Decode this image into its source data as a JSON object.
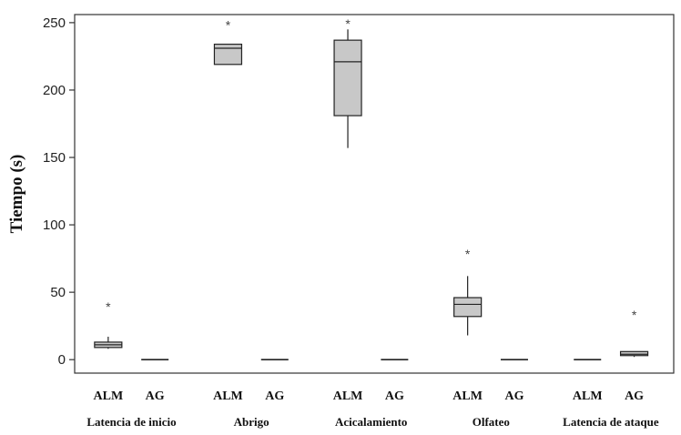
{
  "chart_data": {
    "type": "boxplot",
    "ylabel": "Tiempo (s)",
    "ylim": [
      -10,
      256
    ],
    "yticks": [
      0,
      50,
      100,
      150,
      200,
      250
    ],
    "grid": false,
    "groups": [
      {
        "label": "Latencia de inicio",
        "boxes": [
          {
            "label": "ALM",
            "min": 8,
            "q1": 9,
            "median": 11,
            "q3": 13,
            "max": 17,
            "outliers": [
              42
            ]
          },
          {
            "label": "AG",
            "min": 0,
            "q1": 0,
            "median": 0,
            "q3": 0,
            "max": 0,
            "outliers": []
          }
        ]
      },
      {
        "label": "Abrigo",
        "boxes": [
          {
            "label": "ALM",
            "min": 219,
            "q1": 219,
            "median": 231,
            "q3": 234,
            "max": 234,
            "outliers": [
              251
            ]
          },
          {
            "label": "AG",
            "min": 0,
            "q1": 0,
            "median": 0,
            "q3": 0,
            "max": 0,
            "outliers": []
          }
        ]
      },
      {
        "label": "Acicalamiento",
        "boxes": [
          {
            "label": "ALM",
            "min": 157,
            "q1": 181,
            "median": 221,
            "q3": 237,
            "max": 245,
            "outliers": [
              252
            ]
          },
          {
            "label": "AG",
            "min": 0,
            "q1": 0,
            "median": 0,
            "q3": 0,
            "max": 0,
            "outliers": []
          }
        ]
      },
      {
        "label": "Olfateo",
        "boxes": [
          {
            "label": "ALM",
            "min": 18,
            "q1": 32,
            "median": 41,
            "q3": 46,
            "max": 62,
            "outliers": [
              81
            ]
          },
          {
            "label": "AG",
            "min": 0,
            "q1": 0,
            "median": 0,
            "q3": 0,
            "max": 0,
            "outliers": []
          }
        ]
      },
      {
        "label": "Latencia de ataque",
        "boxes": [
          {
            "label": "ALM",
            "min": 0,
            "q1": 0,
            "median": 0,
            "q3": 0,
            "max": 0,
            "outliers": []
          },
          {
            "label": "AG",
            "min": 2,
            "q1": 3,
            "median": 4,
            "q3": 6,
            "max": 6,
            "outliers": [
              36
            ]
          }
        ]
      }
    ],
    "outlier_symbol": "*",
    "colors": {
      "box_fill": "#c8c8c8",
      "line": "#222222",
      "frame": "#333333",
      "outlier": "#444444"
    }
  }
}
